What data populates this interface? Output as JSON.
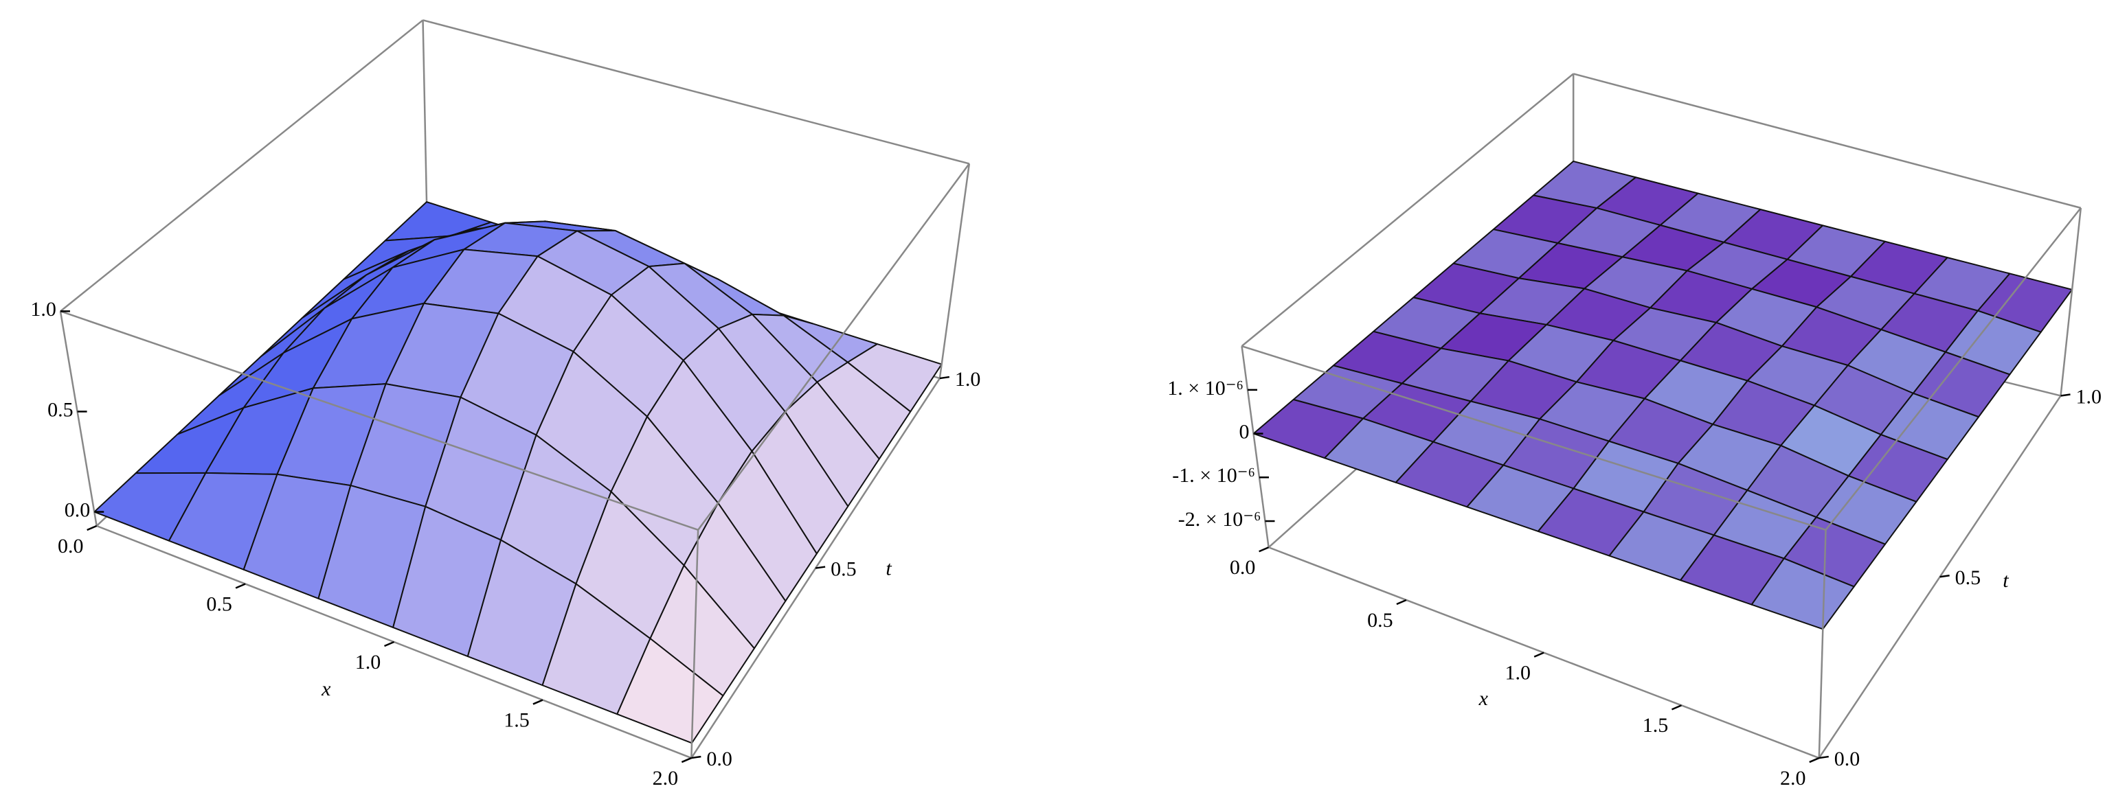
{
  "chart_data": [
    {
      "type": "surface3d",
      "xlabel": "x",
      "ylabel": "t",
      "x": [
        0,
        0.25,
        0.5,
        0.75,
        1,
        1.25,
        1.5,
        1.75,
        2
      ],
      "y": [
        0,
        0.125,
        0.25,
        0.375,
        0.5,
        0.625,
        0.75,
        0.875,
        1
      ],
      "z": [
        [
          0,
          0,
          0,
          0,
          0,
          0,
          0,
          0,
          0
        ],
        [
          0,
          0.14,
          0.27,
          0.35,
          0.38,
          0.35,
          0.27,
          0.14,
          0
        ],
        [
          0,
          0.27,
          0.5,
          0.65,
          0.71,
          0.65,
          0.5,
          0.27,
          0
        ],
        [
          0,
          0.35,
          0.65,
          0.85,
          0.92,
          0.85,
          0.65,
          0.35,
          0
        ],
        [
          0,
          0.38,
          0.71,
          0.92,
          1,
          0.92,
          0.71,
          0.38,
          0
        ],
        [
          0,
          0.35,
          0.65,
          0.85,
          0.92,
          0.85,
          0.65,
          0.35,
          0
        ],
        [
          0,
          0.27,
          0.5,
          0.65,
          0.71,
          0.65,
          0.5,
          0.27,
          0
        ],
        [
          0,
          0.14,
          0.27,
          0.35,
          0.38,
          0.35,
          0.27,
          0.14,
          0
        ],
        [
          0,
          0,
          0,
          0,
          0,
          0,
          0,
          0,
          0
        ]
      ],
      "xlim": [
        0,
        2
      ],
      "ylim": [
        0,
        1
      ],
      "zlim": [
        -0.07,
        1
      ],
      "xticks": [
        {
          "value": 0,
          "label": "0.0"
        },
        0.5,
        {
          "value": 1,
          "label": "1.0"
        },
        1.5,
        {
          "value": 2,
          "label": "2.0"
        }
      ],
      "yticks": [
        {
          "value": 0,
          "label": "0.0"
        },
        0.5,
        {
          "value": 1,
          "label": "1.0"
        }
      ],
      "zticks": [
        {
          "value": 0,
          "label": "0.0"
        },
        0.5,
        {
          "value": 1,
          "label": "1.0"
        }
      ],
      "colors": [
        "#5566f0",
        "#fde8ee"
      ]
    },
    {
      "type": "surface3d",
      "xlabel": "x",
      "ylabel": "t",
      "x": [
        0,
        0.25,
        0.5,
        0.75,
        1,
        1.25,
        1.5,
        1.75,
        2
      ],
      "y": [
        0,
        0.125,
        0.25,
        0.375,
        0.5,
        0.625,
        0.75,
        0.875,
        1
      ],
      "z": [
        [
          0,
          0,
          0,
          0,
          0,
          0,
          0,
          0,
          0
        ],
        [
          0,
          1e-07,
          1e-07,
          1e-07,
          1e-07,
          1e-07,
          1e-07,
          1e-07,
          0
        ],
        [
          0,
          1e-07,
          2e-07,
          3e-07,
          3e-07,
          3e-07,
          2e-07,
          1e-07,
          0
        ],
        [
          0,
          1e-07,
          3e-07,
          3e-07,
          4e-07,
          3e-07,
          3e-07,
          1e-07,
          0
        ],
        [
          0,
          1e-07,
          3e-07,
          4e-07,
          4e-07,
          4e-07,
          3e-07,
          1e-07,
          0
        ],
        [
          0,
          1e-07,
          3e-07,
          3e-07,
          4e-07,
          3e-07,
          3e-07,
          1e-07,
          0
        ],
        [
          0,
          1e-07,
          2e-07,
          3e-07,
          3e-07,
          3e-07,
          2e-07,
          1e-07,
          0
        ],
        [
          0,
          1e-07,
          1e-07,
          1e-07,
          1e-07,
          1e-07,
          1e-07,
          1e-07,
          0
        ],
        [
          0,
          0,
          0,
          0,
          0,
          0,
          0,
          0,
          0
        ]
      ],
      "xlim": [
        0,
        2
      ],
      "ylim": [
        0,
        1
      ],
      "zlim": [
        -2.6e-06,
        2e-06
      ],
      "xticks": [
        {
          "value": 0,
          "label": "0.0"
        },
        0.5,
        {
          "value": 1,
          "label": "1.0"
        },
        1.5,
        {
          "value": 2,
          "label": "2.0"
        }
      ],
      "yticks": [
        {
          "value": 0,
          "label": "0.0"
        },
        0.5,
        {
          "value": 1,
          "label": "1.0"
        }
      ],
      "zticks": [
        {
          "value": 1e-06,
          "label": "1. × 10⁻⁶"
        },
        0,
        {
          "value": -1e-06,
          "label": "-1. × 10⁻⁶"
        },
        {
          "value": -2e-06,
          "label": "-2. × 10⁻⁶"
        }
      ],
      "colors": [
        "#6a2fb8",
        "#9fd8f6"
      ]
    }
  ]
}
